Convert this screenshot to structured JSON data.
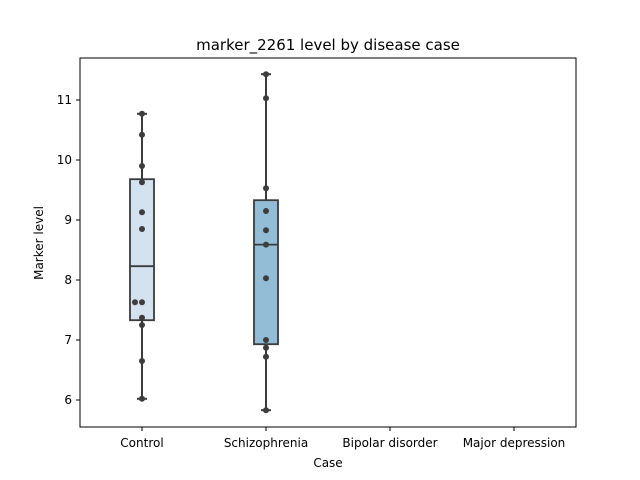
{
  "chart_data": {
    "type": "box",
    "title": "marker_2261 level by disease case",
    "xlabel": "Case",
    "ylabel": "Marker level",
    "categories": [
      "Control",
      "Schizophrenia",
      "Bipolar disorder",
      "Major depression"
    ],
    "ylim": [
      5.55,
      11.7
    ],
    "yticks": [
      6,
      7,
      8,
      9,
      10,
      11
    ],
    "grid": false,
    "box_colors": [
      "#d4e1ef",
      "#93bcd6"
    ],
    "boxes": [
      {
        "category": "Control",
        "whisker_low": 6.02,
        "q1": 7.33,
        "median": 8.23,
        "q3": 9.68,
        "whisker_high": 10.77,
        "points": [
          10.77,
          10.42,
          9.9,
          9.63,
          9.13,
          8.85,
          7.63,
          7.63,
          7.37,
          7.25,
          6.65,
          6.02
        ]
      },
      {
        "category": "Schizophrenia",
        "whisker_low": 5.83,
        "q1": 6.93,
        "median": 8.59,
        "q3": 9.33,
        "whisker_high": 11.43,
        "points": [
          11.43,
          11.03,
          9.53,
          9.15,
          8.83,
          8.59,
          8.03,
          7.0,
          6.87,
          6.72,
          5.83
        ]
      }
    ]
  }
}
